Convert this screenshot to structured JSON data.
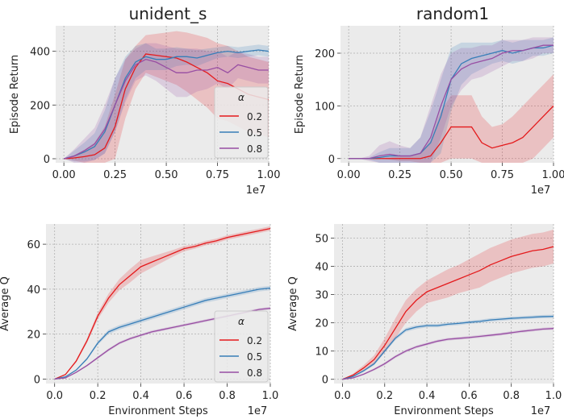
{
  "colors": {
    "panel_bg": "#ebebeb",
    "grid": "#b0b0b0",
    "series": [
      "#e41a1c",
      "#377eb8",
      "#984ea3"
    ],
    "text": "#222222"
  },
  "chart_data": [
    {
      "type": "line",
      "title": "unident_s",
      "xlabel": "",
      "ylabel": "Episode Return",
      "x_offset_label": "1e7",
      "xlim": [
        -0.04,
        1.0
      ],
      "ylim": [
        -15,
        495
      ],
      "xticks": [
        "0.00",
        "0.25",
        "0.50",
        "0.75",
        "1.00"
      ],
      "xtick_values": [
        0,
        0.25,
        0.5,
        0.75,
        1.0
      ],
      "yticks": [
        "0",
        "200",
        "400"
      ],
      "ytick_values": [
        0,
        200,
        400
      ],
      "grid": true,
      "legend": {
        "title": "α",
        "placement": "bottom-right"
      },
      "x": [
        0.0,
        0.05,
        0.1,
        0.15,
        0.2,
        0.25,
        0.3,
        0.35,
        0.4,
        0.45,
        0.5,
        0.55,
        0.6,
        0.65,
        0.7,
        0.75,
        0.8,
        0.85,
        0.9,
        0.95,
        1.0
      ],
      "series": [
        {
          "name": "0.2",
          "values": [
            0,
            3,
            8,
            15,
            40,
            120,
            260,
            340,
            390,
            385,
            380,
            375,
            360,
            340,
            320,
            290,
            280,
            260,
            240,
            230,
            220
          ],
          "band": [
            0,
            10,
            25,
            45,
            80,
            120,
            110,
            80,
            70,
            80,
            90,
            100,
            110,
            120,
            130,
            140,
            140,
            140,
            140,
            140,
            140
          ]
        },
        {
          "name": "0.5",
          "values": [
            0,
            10,
            25,
            45,
            100,
            200,
            300,
            360,
            380,
            370,
            370,
            380,
            380,
            375,
            385,
            395,
            400,
            395,
            400,
            405,
            400
          ],
          "band": [
            0,
            20,
            35,
            50,
            80,
            100,
            80,
            60,
            50,
            40,
            40,
            35,
            30,
            30,
            25,
            20,
            20,
            20,
            20,
            20,
            20
          ]
        },
        {
          "name": "0.8",
          "values": [
            0,
            10,
            30,
            55,
            110,
            200,
            290,
            350,
            370,
            360,
            340,
            320,
            320,
            330,
            330,
            340,
            320,
            350,
            340,
            330,
            330
          ],
          "band": [
            0,
            25,
            45,
            60,
            90,
            100,
            80,
            60,
            60,
            70,
            80,
            90,
            90,
            80,
            70,
            60,
            60,
            50,
            50,
            50,
            50
          ]
        }
      ]
    },
    {
      "type": "line",
      "title": "random1",
      "xlabel": "",
      "ylabel": "Episode Return",
      "x_offset_label": "1e7",
      "xlim": [
        -0.04,
        1.0
      ],
      "ylim": [
        -8,
        252
      ],
      "xticks": [
        "0.00",
        "0.25",
        "0.50",
        "0.75",
        "1.00"
      ],
      "xtick_values": [
        0,
        0.25,
        0.5,
        0.75,
        1.0
      ],
      "yticks": [
        "0",
        "100",
        "200"
      ],
      "ytick_values": [
        0,
        100,
        200
      ],
      "grid": true,
      "x": [
        0.0,
        0.05,
        0.1,
        0.15,
        0.2,
        0.25,
        0.3,
        0.35,
        0.4,
        0.45,
        0.5,
        0.55,
        0.6,
        0.65,
        0.7,
        0.75,
        0.8,
        0.85,
        0.9,
        0.95,
        1.0
      ],
      "series": [
        {
          "name": "0.2",
          "values": [
            0,
            0,
            0,
            0,
            0,
            0,
            0,
            0,
            5,
            30,
            60,
            60,
            60,
            30,
            20,
            25,
            30,
            40,
            60,
            80,
            100
          ],
          "band": [
            0,
            0,
            0,
            0,
            2,
            5,
            5,
            10,
            30,
            60,
            60,
            60,
            60,
            50,
            40,
            40,
            50,
            60,
            60,
            60,
            60
          ]
        },
        {
          "name": "0.5",
          "values": [
            0,
            0,
            0,
            2,
            5,
            5,
            5,
            10,
            30,
            80,
            150,
            180,
            190,
            195,
            200,
            205,
            200,
            205,
            210,
            210,
            215
          ],
          "band": [
            0,
            0,
            2,
            10,
            15,
            15,
            15,
            30,
            60,
            70,
            60,
            40,
            30,
            25,
            20,
            20,
            20,
            20,
            15,
            15,
            15
          ]
        },
        {
          "name": "0.8",
          "values": [
            0,
            0,
            0,
            5,
            8,
            5,
            5,
            10,
            40,
            100,
            150,
            170,
            180,
            185,
            190,
            200,
            205,
            205,
            210,
            215,
            215
          ],
          "band": [
            0,
            0,
            5,
            20,
            25,
            20,
            15,
            30,
            60,
            60,
            50,
            40,
            30,
            30,
            25,
            25,
            20,
            20,
            20,
            15,
            15
          ]
        }
      ]
    },
    {
      "type": "line",
      "title": "",
      "xlabel": "Environment Steps",
      "ylabel": "Average Q",
      "x_offset_label": "1e7",
      "xlim": [
        -0.04,
        1.0
      ],
      "ylim": [
        -2,
        69
      ],
      "xticks": [
        "0.0",
        "0.2",
        "0.4",
        "0.6",
        "0.8",
        "1.0"
      ],
      "xtick_values": [
        0,
        0.2,
        0.4,
        0.6,
        0.8,
        1.0
      ],
      "yticks": [
        "0",
        "20",
        "40",
        "60"
      ],
      "ytick_values": [
        0,
        20,
        40,
        60
      ],
      "grid": true,
      "legend": {
        "title": "α",
        "placement": "bottom-right"
      },
      "x": [
        0.0,
        0.05,
        0.1,
        0.15,
        0.2,
        0.25,
        0.3,
        0.35,
        0.4,
        0.45,
        0.5,
        0.55,
        0.6,
        0.65,
        0.7,
        0.75,
        0.8,
        0.85,
        0.9,
        0.95,
        1.0
      ],
      "series": [
        {
          "name": "0.2",
          "values": [
            0,
            2,
            8,
            17,
            28,
            36,
            42,
            46,
            50,
            52,
            54,
            56,
            58,
            59,
            60.5,
            61.5,
            63,
            64,
            65,
            66,
            67
          ],
          "band": [
            0,
            0.3,
            0.6,
            1,
            1.5,
            2,
            2.5,
            3,
            3,
            2.5,
            2,
            1.5,
            1.2,
            1,
            1,
            1,
            1,
            1,
            1,
            1,
            1
          ]
        },
        {
          "name": "0.5",
          "values": [
            0,
            1,
            4,
            9,
            16,
            21,
            23,
            24.5,
            26,
            27.5,
            29,
            30.5,
            32,
            33.5,
            35,
            36,
            37,
            38,
            39,
            40,
            40.5
          ],
          "band": [
            0,
            0.2,
            0.3,
            0.5,
            0.8,
            1,
            1,
            1,
            1,
            1,
            1,
            1,
            1,
            1,
            1,
            1,
            1,
            1,
            1,
            1,
            1
          ]
        },
        {
          "name": "0.8",
          "values": [
            0,
            0.5,
            3,
            6,
            9.5,
            13,
            16,
            18,
            19.5,
            21,
            22,
            23,
            24,
            25,
            26,
            27,
            28,
            29,
            30,
            31,
            31.5
          ],
          "band": [
            0,
            0.2,
            0.3,
            0.4,
            0.5,
            0.6,
            0.6,
            0.6,
            0.6,
            0.6,
            0.6,
            0.6,
            0.6,
            0.6,
            0.6,
            0.6,
            0.6,
            0.6,
            0.6,
            0.6,
            0.6
          ]
        }
      ]
    },
    {
      "type": "line",
      "title": "",
      "xlabel": "Environment Steps",
      "ylabel": "Average Q",
      "x_offset_label": "1e7",
      "xlim": [
        -0.04,
        1.0
      ],
      "ylim": [
        -1.5,
        55
      ],
      "xticks": [
        "0.0",
        "0.2",
        "0.4",
        "0.6",
        "0.8",
        "1.0"
      ],
      "xtick_values": [
        0,
        0.2,
        0.4,
        0.6,
        0.8,
        1.0
      ],
      "yticks": [
        "0",
        "10",
        "20",
        "30",
        "40",
        "50"
      ],
      "ytick_values": [
        0,
        10,
        20,
        30,
        40,
        50
      ],
      "grid": true,
      "x": [
        0.0,
        0.05,
        0.1,
        0.15,
        0.2,
        0.25,
        0.3,
        0.35,
        0.4,
        0.45,
        0.5,
        0.55,
        0.6,
        0.65,
        0.7,
        0.75,
        0.8,
        0.85,
        0.9,
        0.95,
        1.0
      ],
      "series": [
        {
          "name": "0.2",
          "values": [
            0,
            1.5,
            4,
            7,
            12,
            18,
            24,
            28,
            31,
            32.5,
            34,
            35.5,
            37,
            38.5,
            40.5,
            42,
            43.5,
            44.5,
            45.5,
            46,
            47
          ],
          "band": [
            0,
            0.5,
            1,
            1.5,
            2.5,
            3.5,
            4,
            4,
            4,
            4.5,
            5,
            5,
            5.5,
            6,
            6,
            6,
            6,
            6,
            6,
            6,
            6
          ]
        },
        {
          "name": "0.5",
          "values": [
            0,
            1,
            3,
            5.5,
            10,
            14.5,
            17.5,
            18.5,
            19,
            19,
            19.5,
            19.8,
            20.2,
            20.5,
            21,
            21.3,
            21.6,
            21.8,
            22,
            22.2,
            22.3
          ],
          "band": [
            0,
            0.2,
            0.4,
            0.5,
            0.6,
            0.7,
            0.7,
            0.7,
            0.6,
            0.6,
            0.6,
            0.6,
            0.6,
            0.6,
            0.6,
            0.6,
            0.6,
            0.6,
            0.6,
            0.6,
            0.6
          ]
        },
        {
          "name": "0.8",
          "values": [
            0,
            0.5,
            1.8,
            3.5,
            5.5,
            8,
            10,
            11.5,
            12.5,
            13.5,
            14.2,
            14.5,
            14.8,
            15.2,
            15.6,
            16,
            16.5,
            17,
            17.4,
            17.8,
            18
          ],
          "band": [
            0,
            0.2,
            0.3,
            0.4,
            0.5,
            0.5,
            0.5,
            0.5,
            0.5,
            0.5,
            0.5,
            0.5,
            0.5,
            0.5,
            0.5,
            0.5,
            0.5,
            0.5,
            0.5,
            0.5,
            0.5
          ]
        }
      ]
    }
  ]
}
